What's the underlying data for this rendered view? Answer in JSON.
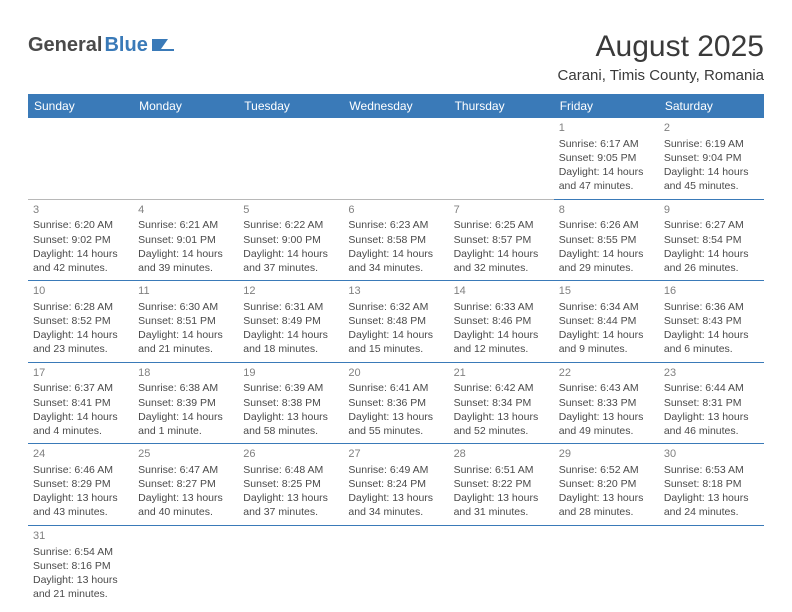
{
  "logo": {
    "general": "General",
    "blue": "Blue"
  },
  "title": "August 2025",
  "location": "Carani, Timis County, Romania",
  "colors": {
    "header_bg": "#3a7ab8",
    "header_text": "#ffffff",
    "row_border": "#3a7ab8",
    "empty_border": "#b8b8b8",
    "daynum": "#808080",
    "body_text": "#4a4a4a"
  },
  "day_headers": [
    "Sunday",
    "Monday",
    "Tuesday",
    "Wednesday",
    "Thursday",
    "Friday",
    "Saturday"
  ],
  "weeks": [
    [
      null,
      null,
      null,
      null,
      null,
      {
        "n": "1",
        "sr": "Sunrise: 6:17 AM",
        "ss": "Sunset: 9:05 PM",
        "d1": "Daylight: 14 hours",
        "d2": "and 47 minutes."
      },
      {
        "n": "2",
        "sr": "Sunrise: 6:19 AM",
        "ss": "Sunset: 9:04 PM",
        "d1": "Daylight: 14 hours",
        "d2": "and 45 minutes."
      }
    ],
    [
      {
        "n": "3",
        "sr": "Sunrise: 6:20 AM",
        "ss": "Sunset: 9:02 PM",
        "d1": "Daylight: 14 hours",
        "d2": "and 42 minutes."
      },
      {
        "n": "4",
        "sr": "Sunrise: 6:21 AM",
        "ss": "Sunset: 9:01 PM",
        "d1": "Daylight: 14 hours",
        "d2": "and 39 minutes."
      },
      {
        "n": "5",
        "sr": "Sunrise: 6:22 AM",
        "ss": "Sunset: 9:00 PM",
        "d1": "Daylight: 14 hours",
        "d2": "and 37 minutes."
      },
      {
        "n": "6",
        "sr": "Sunrise: 6:23 AM",
        "ss": "Sunset: 8:58 PM",
        "d1": "Daylight: 14 hours",
        "d2": "and 34 minutes."
      },
      {
        "n": "7",
        "sr": "Sunrise: 6:25 AM",
        "ss": "Sunset: 8:57 PM",
        "d1": "Daylight: 14 hours",
        "d2": "and 32 minutes."
      },
      {
        "n": "8",
        "sr": "Sunrise: 6:26 AM",
        "ss": "Sunset: 8:55 PM",
        "d1": "Daylight: 14 hours",
        "d2": "and 29 minutes."
      },
      {
        "n": "9",
        "sr": "Sunrise: 6:27 AM",
        "ss": "Sunset: 8:54 PM",
        "d1": "Daylight: 14 hours",
        "d2": "and 26 minutes."
      }
    ],
    [
      {
        "n": "10",
        "sr": "Sunrise: 6:28 AM",
        "ss": "Sunset: 8:52 PM",
        "d1": "Daylight: 14 hours",
        "d2": "and 23 minutes."
      },
      {
        "n": "11",
        "sr": "Sunrise: 6:30 AM",
        "ss": "Sunset: 8:51 PM",
        "d1": "Daylight: 14 hours",
        "d2": "and 21 minutes."
      },
      {
        "n": "12",
        "sr": "Sunrise: 6:31 AM",
        "ss": "Sunset: 8:49 PM",
        "d1": "Daylight: 14 hours",
        "d2": "and 18 minutes."
      },
      {
        "n": "13",
        "sr": "Sunrise: 6:32 AM",
        "ss": "Sunset: 8:48 PM",
        "d1": "Daylight: 14 hours",
        "d2": "and 15 minutes."
      },
      {
        "n": "14",
        "sr": "Sunrise: 6:33 AM",
        "ss": "Sunset: 8:46 PM",
        "d1": "Daylight: 14 hours",
        "d2": "and 12 minutes."
      },
      {
        "n": "15",
        "sr": "Sunrise: 6:34 AM",
        "ss": "Sunset: 8:44 PM",
        "d1": "Daylight: 14 hours",
        "d2": "and 9 minutes."
      },
      {
        "n": "16",
        "sr": "Sunrise: 6:36 AM",
        "ss": "Sunset: 8:43 PM",
        "d1": "Daylight: 14 hours",
        "d2": "and 6 minutes."
      }
    ],
    [
      {
        "n": "17",
        "sr": "Sunrise: 6:37 AM",
        "ss": "Sunset: 8:41 PM",
        "d1": "Daylight: 14 hours",
        "d2": "and 4 minutes."
      },
      {
        "n": "18",
        "sr": "Sunrise: 6:38 AM",
        "ss": "Sunset: 8:39 PM",
        "d1": "Daylight: 14 hours",
        "d2": "and 1 minute."
      },
      {
        "n": "19",
        "sr": "Sunrise: 6:39 AM",
        "ss": "Sunset: 8:38 PM",
        "d1": "Daylight: 13 hours",
        "d2": "and 58 minutes."
      },
      {
        "n": "20",
        "sr": "Sunrise: 6:41 AM",
        "ss": "Sunset: 8:36 PM",
        "d1": "Daylight: 13 hours",
        "d2": "and 55 minutes."
      },
      {
        "n": "21",
        "sr": "Sunrise: 6:42 AM",
        "ss": "Sunset: 8:34 PM",
        "d1": "Daylight: 13 hours",
        "d2": "and 52 minutes."
      },
      {
        "n": "22",
        "sr": "Sunrise: 6:43 AM",
        "ss": "Sunset: 8:33 PM",
        "d1": "Daylight: 13 hours",
        "d2": "and 49 minutes."
      },
      {
        "n": "23",
        "sr": "Sunrise: 6:44 AM",
        "ss": "Sunset: 8:31 PM",
        "d1": "Daylight: 13 hours",
        "d2": "and 46 minutes."
      }
    ],
    [
      {
        "n": "24",
        "sr": "Sunrise: 6:46 AM",
        "ss": "Sunset: 8:29 PM",
        "d1": "Daylight: 13 hours",
        "d2": "and 43 minutes."
      },
      {
        "n": "25",
        "sr": "Sunrise: 6:47 AM",
        "ss": "Sunset: 8:27 PM",
        "d1": "Daylight: 13 hours",
        "d2": "and 40 minutes."
      },
      {
        "n": "26",
        "sr": "Sunrise: 6:48 AM",
        "ss": "Sunset: 8:25 PM",
        "d1": "Daylight: 13 hours",
        "d2": "and 37 minutes."
      },
      {
        "n": "27",
        "sr": "Sunrise: 6:49 AM",
        "ss": "Sunset: 8:24 PM",
        "d1": "Daylight: 13 hours",
        "d2": "and 34 minutes."
      },
      {
        "n": "28",
        "sr": "Sunrise: 6:51 AM",
        "ss": "Sunset: 8:22 PM",
        "d1": "Daylight: 13 hours",
        "d2": "and 31 minutes."
      },
      {
        "n": "29",
        "sr": "Sunrise: 6:52 AM",
        "ss": "Sunset: 8:20 PM",
        "d1": "Daylight: 13 hours",
        "d2": "and 28 minutes."
      },
      {
        "n": "30",
        "sr": "Sunrise: 6:53 AM",
        "ss": "Sunset: 8:18 PM",
        "d1": "Daylight: 13 hours",
        "d2": "and 24 minutes."
      }
    ],
    [
      {
        "n": "31",
        "sr": "Sunrise: 6:54 AM",
        "ss": "Sunset: 8:16 PM",
        "d1": "Daylight: 13 hours",
        "d2": "and 21 minutes."
      },
      null,
      null,
      null,
      null,
      null,
      null
    ]
  ]
}
